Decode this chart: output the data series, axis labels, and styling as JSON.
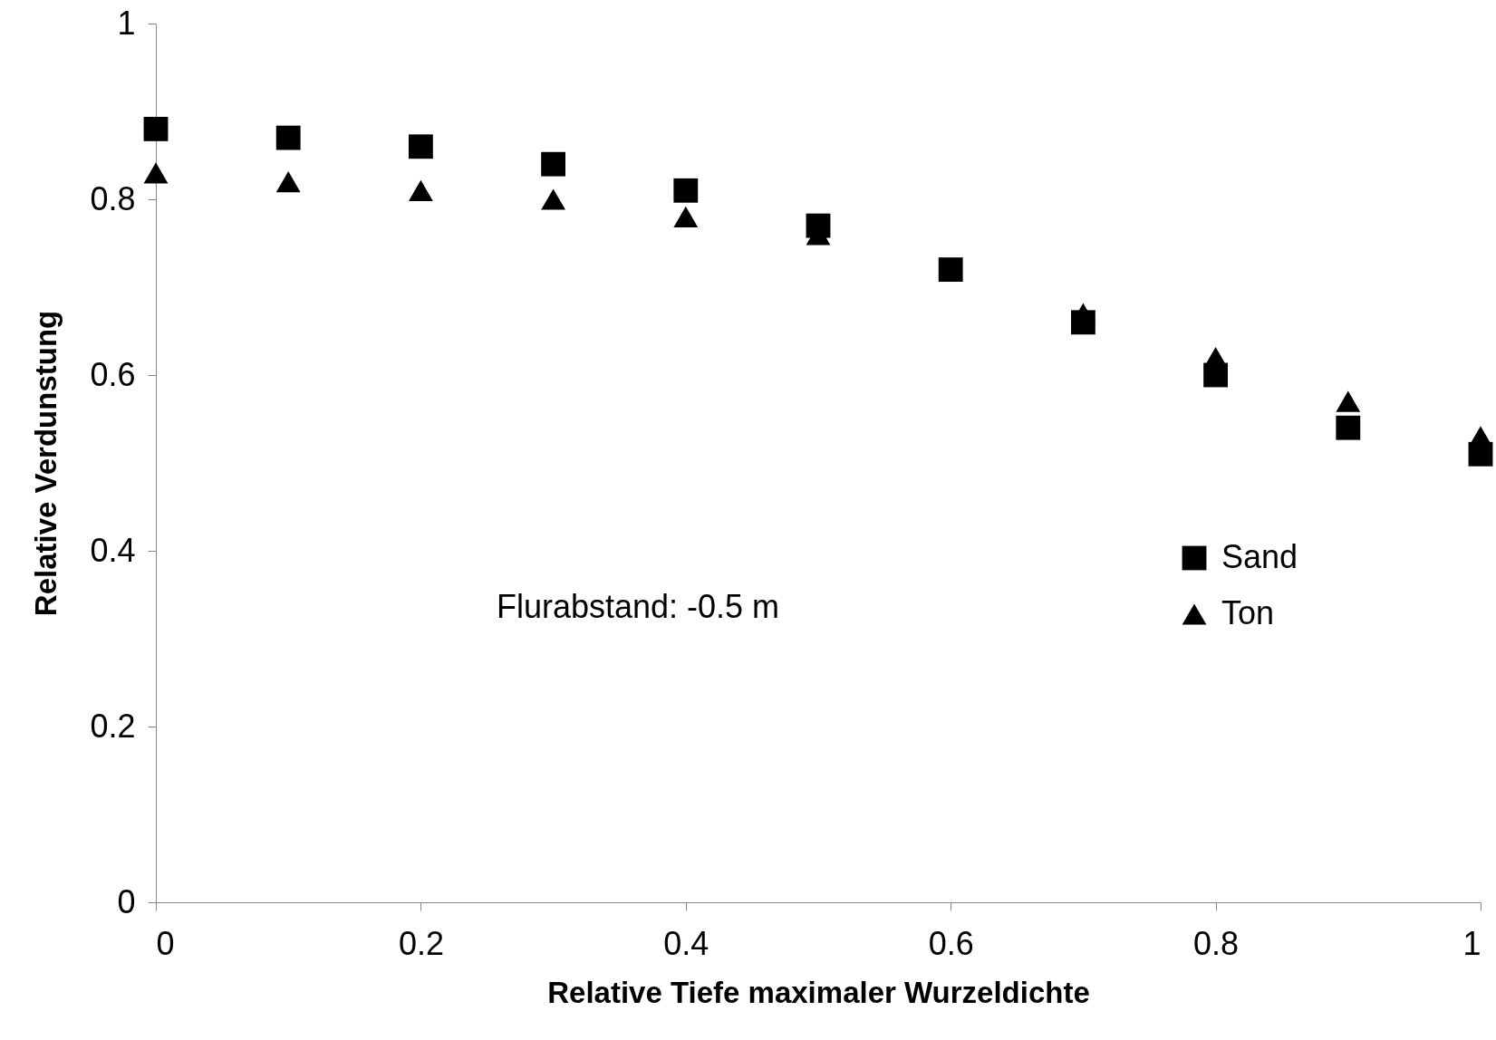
{
  "chart_data": {
    "type": "scatter",
    "xlabel": "Relative Tiefe maximaler Wurzeldichte",
    "ylabel": "Relative Verdunstung",
    "x": [
      0,
      0.1,
      0.2,
      0.3,
      0.4,
      0.5,
      0.6,
      0.7,
      0.8,
      0.9,
      1
    ],
    "series": [
      {
        "name": "Sand",
        "color": "#000000",
        "marker": "square",
        "values": [
          0.88,
          0.87,
          0.86,
          0.84,
          0.81,
          0.77,
          0.72,
          0.66,
          0.6,
          0.54,
          0.51
        ]
      },
      {
        "name": "Ton",
        "color": "#000000",
        "marker": "triangle",
        "values": [
          0.83,
          0.82,
          0.81,
          0.8,
          0.78,
          0.76,
          null,
          0.67,
          0.62,
          0.57,
          0.53
        ]
      }
    ],
    "xlim": [
      0,
      1
    ],
    "xticks": [
      0,
      0.2,
      0.4,
      0.6,
      0.8,
      1
    ],
    "ylim": [
      0,
      1
    ],
    "yticks": [
      0,
      0.2,
      0.4,
      0.6,
      0.8,
      1
    ],
    "grid": false,
    "legend": "right",
    "annotations": [
      "Flurabstand: -0.5 m"
    ]
  }
}
